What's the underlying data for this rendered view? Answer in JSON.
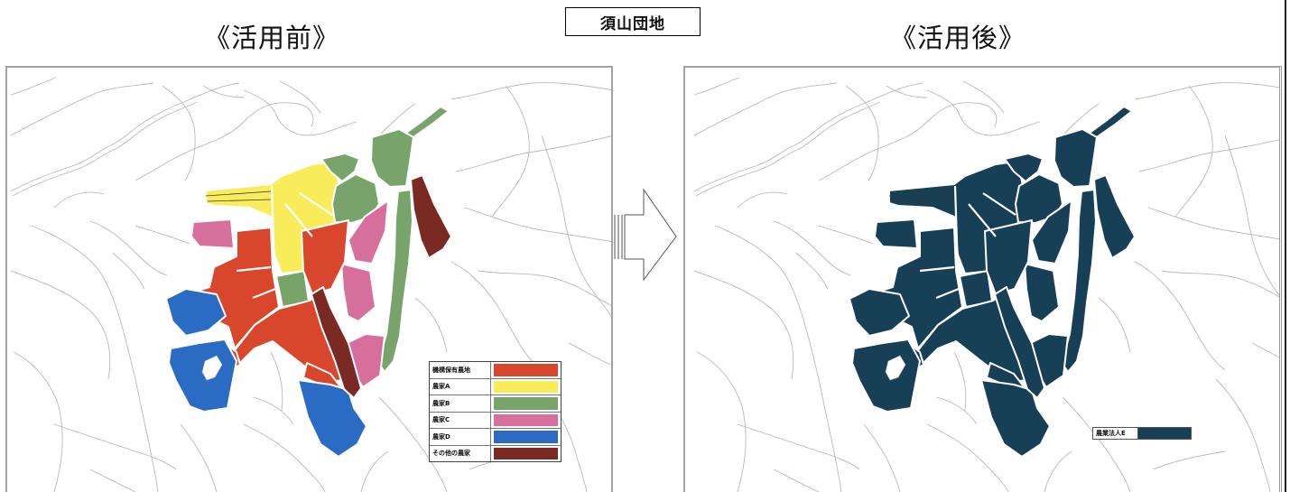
{
  "header": {
    "title_before": "《活用前》",
    "area_label": "須山団地",
    "title_after": "《活用後》"
  },
  "legend_before": [
    {
      "label": "機構保有農地",
      "color": "#d8472b"
    },
    {
      "label": "農家A",
      "color": "#f9ec5b"
    },
    {
      "label": "農家B",
      "color": "#78a46b"
    },
    {
      "label": "農家C",
      "color": "#d66f9b"
    },
    {
      "label": "農家D",
      "color": "#2a6bc3"
    },
    {
      "label": "その他の農家",
      "color": "#7a2923"
    }
  ],
  "legend_after": [
    {
      "label": "農業法人E",
      "color": "#173f55"
    }
  ],
  "icons": {
    "arrow": "right-arrow-icon"
  }
}
